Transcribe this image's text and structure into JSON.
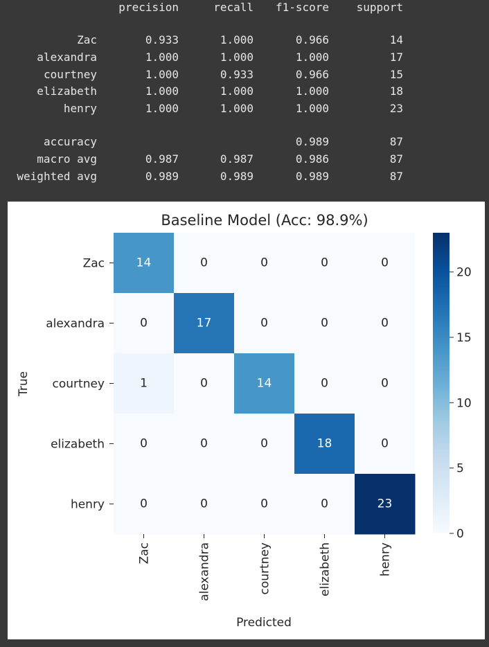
{
  "report": {
    "headers": [
      "precision",
      "recall",
      "f1-score",
      "support"
    ],
    "rows": [
      {
        "label": "Zac",
        "cells": [
          "0.933",
          "1.000",
          "0.966",
          "14"
        ]
      },
      {
        "label": "alexandra",
        "cells": [
          "1.000",
          "1.000",
          "1.000",
          "17"
        ]
      },
      {
        "label": "courtney",
        "cells": [
          "1.000",
          "0.933",
          "0.966",
          "15"
        ]
      },
      {
        "label": "elizabeth",
        "cells": [
          "1.000",
          "1.000",
          "1.000",
          "18"
        ]
      },
      {
        "label": "henry",
        "cells": [
          "1.000",
          "1.000",
          "1.000",
          "23"
        ]
      }
    ],
    "summary": [
      {
        "label": "accuracy",
        "cells": [
          "",
          "",
          "0.989",
          "87"
        ]
      },
      {
        "label": "macro avg",
        "cells": [
          "0.987",
          "0.987",
          "0.986",
          "87"
        ]
      },
      {
        "label": "weighted avg",
        "cells": [
          "0.989",
          "0.989",
          "0.989",
          "87"
        ]
      }
    ]
  },
  "chart_data": {
    "type": "heatmap",
    "title": "Baseline Model (Acc: 98.9%)",
    "xlabel": "Predicted",
    "ylabel": "True",
    "x_categories": [
      "Zac",
      "alexandra",
      "courtney",
      "elizabeth",
      "henry"
    ],
    "y_categories": [
      "Zac",
      "alexandra",
      "courtney",
      "elizabeth",
      "henry"
    ],
    "values": [
      [
        14,
        0,
        0,
        0,
        0
      ],
      [
        0,
        17,
        0,
        0,
        0
      ],
      [
        1,
        0,
        14,
        0,
        0
      ],
      [
        0,
        0,
        0,
        18,
        0
      ],
      [
        0,
        0,
        0,
        0,
        23
      ]
    ],
    "colormap": "Blues",
    "colorbar": {
      "min": 0,
      "max": 23,
      "ticks": [
        0,
        5,
        10,
        15,
        20
      ]
    },
    "annotations": true
  }
}
